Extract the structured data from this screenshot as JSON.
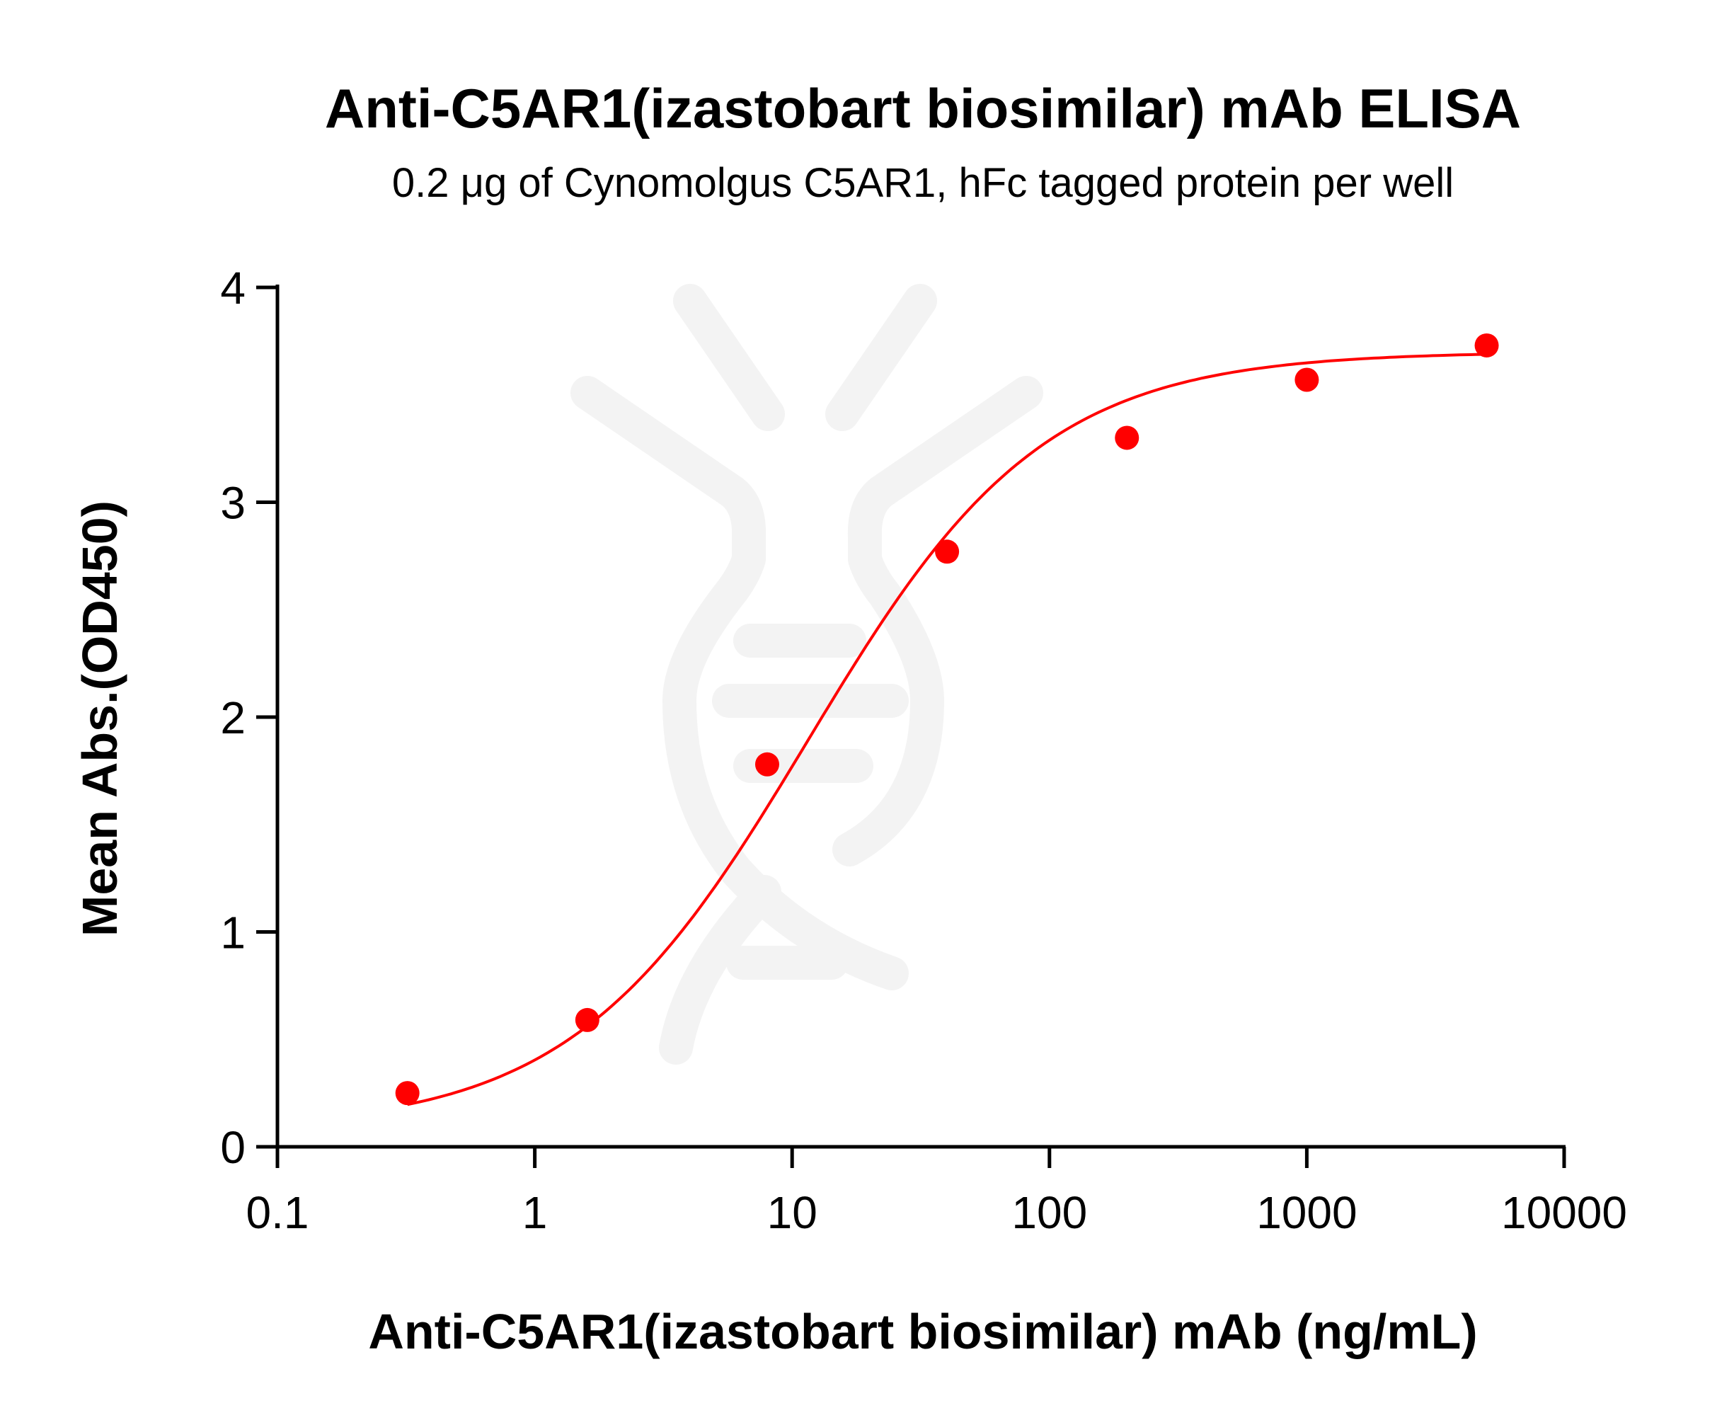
{
  "chart_data": {
    "type": "scatter",
    "title": "Anti-C5AR1(izastobart biosimilar) mAb ELISA",
    "subtitle": "0.2 μg of Cynomolgus C5AR1, hFc tagged protein per well",
    "xlabel": "Anti-C5AR1(izastobart biosimilar) mAb (ng/mL)",
    "ylabel": "Mean Abs.(OD450)",
    "xscale": "log",
    "xlim": [
      0.1,
      10000
    ],
    "ylim": [
      0,
      4
    ],
    "xticks": [
      "0.1",
      "1",
      "10",
      "100",
      "1000",
      "10000"
    ],
    "yticks": [
      "0",
      "1",
      "2",
      "3",
      "4"
    ],
    "grid": false,
    "series": [
      {
        "x": [
          0.32,
          1.6,
          8,
          40,
          200,
          1000,
          5000
        ],
        "y": [
          0.25,
          0.59,
          1.78,
          2.77,
          3.3,
          3.57,
          3.73
        ],
        "color": "#ff0000",
        "fit": "sigmoidal curve"
      }
    ]
  }
}
